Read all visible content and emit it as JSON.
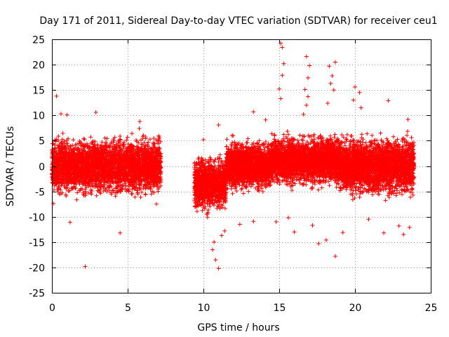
{
  "chart_data": {
    "type": "scatter",
    "title": "Day 171 of 2011, Sidereal Day-to-day VTEC variation (SDTVAR) for receiver ceu1",
    "xlabel": "GPS time / hours",
    "ylabel": "SDTVAR / TECUs",
    "xlim": [
      0,
      25
    ],
    "ylim": [
      -25,
      25
    ],
    "xticks": [
      0,
      5,
      10,
      15,
      20,
      25
    ],
    "yticks": [
      -25,
      -20,
      -15,
      -10,
      -5,
      0,
      5,
      10,
      15,
      20,
      25
    ],
    "grid": true,
    "marker": "+",
    "color": "#ff0000",
    "series": [
      {
        "name": "SDTVAR",
        "dense_segments": [
          {
            "x_start": 0.0,
            "x_end": 7.2,
            "y_min": -7,
            "y_max": 7,
            "count": 3400
          },
          {
            "x_start": 9.4,
            "x_end": 11.5,
            "y_min": -10,
            "y_max": 3,
            "count": 1100
          },
          {
            "x_start": 11.5,
            "x_end": 14.5,
            "y_min": -6,
            "y_max": 6,
            "count": 1600
          },
          {
            "x_start": 14.5,
            "x_end": 19.0,
            "y_min": -5,
            "y_max": 7,
            "count": 2300
          },
          {
            "x_start": 19.0,
            "x_end": 23.9,
            "y_min": -7,
            "y_max": 7,
            "count": 2600
          }
        ],
        "points": [
          [
            0.3,
            13.8
          ],
          [
            0.6,
            10.3
          ],
          [
            1.0,
            10.1
          ],
          [
            2.9,
            10.6
          ],
          [
            1.2,
            -11.1
          ],
          [
            2.2,
            -19.8
          ],
          [
            4.5,
            -13.2
          ],
          [
            5.8,
            8.8
          ],
          [
            10.0,
            5.2
          ],
          [
            11.0,
            8.1
          ],
          [
            10.6,
            -16.5
          ],
          [
            10.8,
            -18.5
          ],
          [
            11.0,
            -20.2
          ],
          [
            11.2,
            -13.7
          ],
          [
            10.7,
            -15.0
          ],
          [
            11.4,
            -12.8
          ],
          [
            13.3,
            10.7
          ],
          [
            14.1,
            9.1
          ],
          [
            12.4,
            -11.5
          ],
          [
            13.3,
            -10.9
          ],
          [
            15.1,
            24.2
          ],
          [
            15.2,
            23.4
          ],
          [
            15.3,
            20.2
          ],
          [
            15.2,
            17.9
          ],
          [
            15.0,
            15.2
          ],
          [
            15.1,
            13.3
          ],
          [
            16.8,
            21.6
          ],
          [
            17.0,
            19.8
          ],
          [
            16.9,
            17.4
          ],
          [
            16.7,
            15.1
          ],
          [
            16.9,
            13.7
          ],
          [
            16.8,
            12.0
          ],
          [
            16.6,
            10.2
          ],
          [
            18.3,
            19.7
          ],
          [
            18.5,
            17.8
          ],
          [
            18.7,
            20.5
          ],
          [
            18.4,
            16.3
          ],
          [
            18.6,
            15.0
          ],
          [
            18.2,
            12.4
          ],
          [
            20.0,
            15.6
          ],
          [
            20.3,
            14.5
          ],
          [
            19.9,
            13.0
          ],
          [
            20.4,
            11.5
          ],
          [
            22.2,
            12.9
          ],
          [
            23.5,
            9.2
          ],
          [
            18.7,
            -17.8
          ],
          [
            17.6,
            -15.3
          ],
          [
            18.1,
            -14.6
          ],
          [
            16.0,
            -13.0
          ],
          [
            14.8,
            -11.0
          ],
          [
            15.6,
            -10.2
          ],
          [
            21.9,
            -13.2
          ],
          [
            23.2,
            -13.5
          ],
          [
            23.6,
            -12.1
          ],
          [
            22.9,
            -11.8
          ],
          [
            20.9,
            -10.5
          ],
          [
            17.2,
            -11.7
          ],
          [
            19.2,
            -13.1
          ],
          [
            0.1,
            -7.4
          ],
          [
            6.9,
            -7.5
          ]
        ]
      }
    ]
  }
}
